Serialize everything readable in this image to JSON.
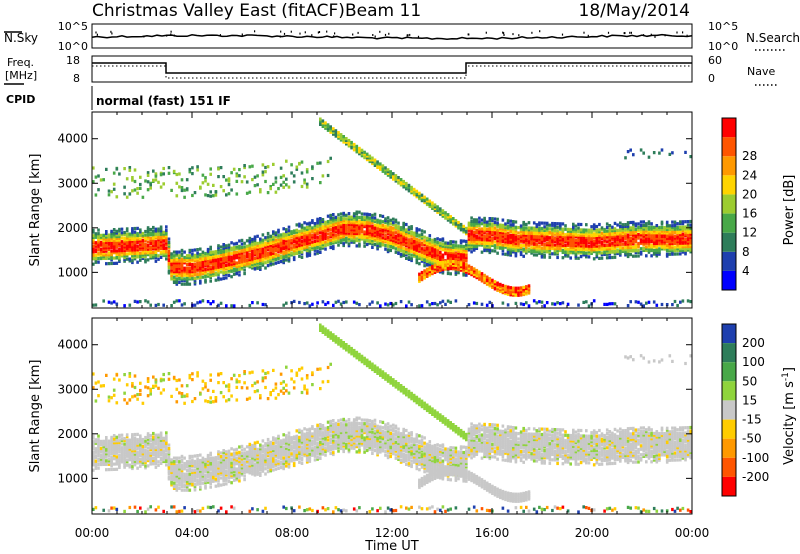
{
  "header": {
    "title": "Christmas Valley East (fitACF)",
    "beam": "Beam 11",
    "date": "18/May/2014"
  },
  "top_panels": {
    "nsky_label": "N.Sky",
    "nsearch_label": "N.Search",
    "nsky_ticks": [
      "10^5",
      "10^0"
    ],
    "nsearch_ticks": [
      "10^5",
      "10^0"
    ],
    "freq_label": [
      "Freq.",
      "[MHz]"
    ],
    "freq_ticks": [
      "18",
      "8"
    ],
    "nave_label": "Nave",
    "nave_ticks": [
      "60",
      "0"
    ],
    "cpid_label": "CPID",
    "cpid_text": "normal (fast) 151 IF"
  },
  "colors": {
    "power_scale": [
      "#0000ff",
      "#1e3fae",
      "#2e7d5a",
      "#48a848",
      "#9ccc30",
      "#ffd400",
      "#ff9900",
      "#ff5500",
      "#ff0000"
    ],
    "velocity_scale": [
      "#1e3fae",
      "#2e7d5a",
      "#48a848",
      "#8fd43c",
      "#c8c8c8",
      "#ffcc00",
      "#ff9900",
      "#ff5500",
      "#ff0000"
    ]
  },
  "chart_data": [
    {
      "type": "heatmap",
      "name": "power",
      "ylabel": "Slant Range [km]",
      "xlim": [
        0,
        24
      ],
      "ylim": [
        200,
        4600
      ],
      "yticks": [
        "1000",
        "2000",
        "3000",
        "4000"
      ],
      "colorbar_label": "Power [dB]",
      "colorbar_ticks": [
        "4",
        "8",
        "12",
        "16",
        "20",
        "24",
        "28"
      ],
      "band_center_km": [
        [
          0,
          1600
        ],
        [
          1,
          1620
        ],
        [
          2,
          1650
        ],
        [
          3,
          1680
        ],
        [
          3.05,
          1150
        ],
        [
          4,
          1150
        ],
        [
          5,
          1250
        ],
        [
          6,
          1380
        ],
        [
          7,
          1530
        ],
        [
          8,
          1700
        ],
        [
          9,
          1850
        ],
        [
          10,
          2020
        ],
        [
          11,
          2000
        ],
        [
          12,
          1850
        ],
        [
          13,
          1620
        ],
        [
          14,
          1400
        ],
        [
          14.95,
          1350
        ],
        [
          15,
          1880
        ],
        [
          16,
          1860
        ],
        [
          17,
          1780
        ],
        [
          18,
          1760
        ],
        [
          19,
          1740
        ],
        [
          20,
          1720
        ],
        [
          21,
          1760
        ],
        [
          22,
          1790
        ],
        [
          23,
          1780
        ],
        [
          24,
          1800
        ]
      ]
    },
    {
      "type": "heatmap",
      "name": "velocity",
      "ylabel": "Slant Range [km]",
      "xlim": [
        0,
        24
      ],
      "ylim": [
        200,
        4600
      ],
      "yticks": [
        "1000",
        "2000",
        "3000",
        "4000"
      ],
      "colorbar_label": "Velocity [m s^-1]",
      "colorbar_ticks": [
        "200",
        "100",
        "50",
        "15",
        "-15",
        "-50",
        "-100",
        "-200"
      ]
    }
  ],
  "xaxis": {
    "ticks": [
      "00:00",
      "04:00",
      "08:00",
      "12:00",
      "16:00",
      "20:00",
      "00:00"
    ],
    "label": "Time UT"
  }
}
